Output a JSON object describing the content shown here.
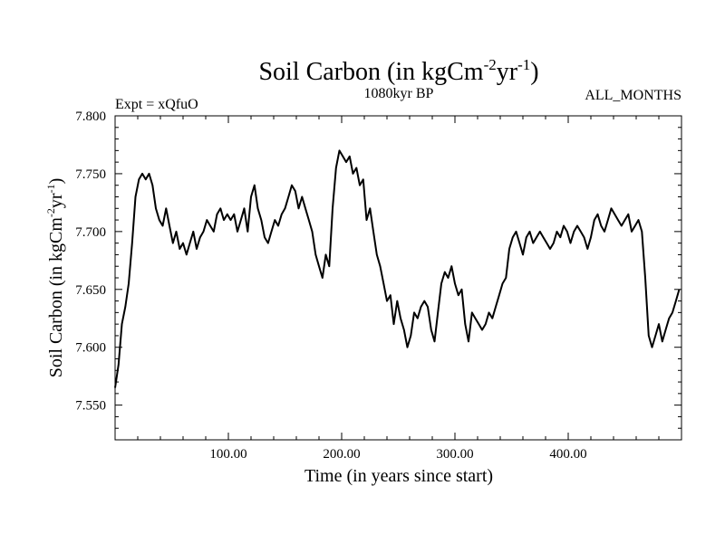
{
  "chart_data": {
    "type": "line",
    "title_main": "Soil Carbon (in kgCm",
    "title_exp1": "-2",
    "title_mid": "yr",
    "title_exp2": "-1",
    "title_end": ")",
    "subtitle_center": "1080kyr BP",
    "subtitle_left": "Expt = xQfuO",
    "subtitle_right": "ALL_MONTHS",
    "xlabel": "Time (in years since start)",
    "ylabel_main": "Soil Carbon (in kgCm",
    "ylabel_exp1": "-2",
    "ylabel_mid": "yr",
    "ylabel_exp2": "-1",
    "ylabel_end": ")",
    "xlim": [
      0,
      500
    ],
    "ylim": [
      7.52,
      7.8
    ],
    "x_ticks": [
      100,
      200,
      300,
      400
    ],
    "x_tick_labels": [
      "100.00",
      "200.00",
      "300.00",
      "400.00"
    ],
    "y_ticks": [
      7.55,
      7.6,
      7.65,
      7.7,
      7.75,
      7.8
    ],
    "y_tick_labels": [
      "7.550",
      "7.600",
      "7.650",
      "7.700",
      "7.750",
      "7.800"
    ],
    "line_color": "#000000",
    "series": [
      {
        "name": "Soil Carbon",
        "x": [
          0,
          3,
          6,
          9,
          12,
          15,
          18,
          21,
          24,
          27,
          30,
          33,
          36,
          39,
          42,
          45,
          48,
          51,
          54,
          57,
          60,
          63,
          66,
          69,
          72,
          75,
          78,
          81,
          84,
          87,
          90,
          93,
          96,
          99,
          102,
          105,
          108,
          111,
          114,
          117,
          120,
          123,
          126,
          129,
          132,
          135,
          138,
          141,
          144,
          147,
          150,
          153,
          156,
          159,
          162,
          165,
          168,
          171,
          174,
          177,
          180,
          183,
          186,
          189,
          192,
          195,
          198,
          201,
          204,
          207,
          210,
          213,
          216,
          219,
          222,
          225,
          228,
          231,
          234,
          237,
          240,
          243,
          246,
          249,
          252,
          255,
          258,
          261,
          264,
          267,
          270,
          273,
          276,
          279,
          282,
          285,
          288,
          291,
          294,
          297,
          300,
          303,
          306,
          309,
          312,
          315,
          318,
          321,
          324,
          327,
          330,
          333,
          336,
          339,
          342,
          345,
          348,
          351,
          354,
          357,
          360,
          363,
          366,
          369,
          372,
          375,
          378,
          381,
          384,
          387,
          390,
          393,
          396,
          399,
          402,
          405,
          408,
          411,
          414,
          417,
          420,
          423,
          426,
          429,
          432,
          435,
          438,
          441,
          444,
          447,
          450,
          453,
          456,
          459,
          462,
          465,
          468,
          471,
          474,
          477,
          480,
          483,
          486,
          489,
          492,
          495,
          498
        ],
        "y": [
          7.565,
          7.585,
          7.62,
          7.635,
          7.655,
          7.69,
          7.73,
          7.745,
          7.75,
          7.745,
          7.75,
          7.74,
          7.72,
          7.71,
          7.705,
          7.72,
          7.705,
          7.69,
          7.7,
          7.685,
          7.69,
          7.68,
          7.69,
          7.7,
          7.685,
          7.695,
          7.7,
          7.71,
          7.705,
          7.7,
          7.715,
          7.72,
          7.71,
          7.715,
          7.71,
          7.715,
          7.7,
          7.71,
          7.72,
          7.7,
          7.73,
          7.74,
          7.72,
          7.71,
          7.695,
          7.69,
          7.7,
          7.71,
          7.705,
          7.715,
          7.72,
          7.73,
          7.74,
          7.735,
          7.72,
          7.73,
          7.72,
          7.71,
          7.7,
          7.68,
          7.67,
          7.66,
          7.68,
          7.67,
          7.72,
          7.755,
          7.77,
          7.765,
          7.76,
          7.765,
          7.75,
          7.755,
          7.74,
          7.745,
          7.71,
          7.72,
          7.7,
          7.68,
          7.67,
          7.655,
          7.64,
          7.645,
          7.62,
          7.64,
          7.625,
          7.615,
          7.6,
          7.61,
          7.63,
          7.625,
          7.635,
          7.64,
          7.635,
          7.615,
          7.605,
          7.63,
          7.655,
          7.665,
          7.66,
          7.67,
          7.655,
          7.645,
          7.65,
          7.62,
          7.605,
          7.63,
          7.625,
          7.62,
          7.615,
          7.62,
          7.63,
          7.625,
          7.635,
          7.645,
          7.655,
          7.66,
          7.685,
          7.695,
          7.7,
          7.69,
          7.68,
          7.695,
          7.7,
          7.69,
          7.695,
          7.7,
          7.695,
          7.69,
          7.685,
          7.69,
          7.7,
          7.695,
          7.705,
          7.7,
          7.69,
          7.7,
          7.705,
          7.7,
          7.695,
          7.685,
          7.695,
          7.71,
          7.715,
          7.705,
          7.7,
          7.71,
          7.72,
          7.715,
          7.71,
          7.705,
          7.71,
          7.715,
          7.7,
          7.705,
          7.71,
          7.7,
          7.66,
          7.61,
          7.6,
          7.61,
          7.62,
          7.605,
          7.615,
          7.625,
          7.63,
          7.64,
          7.65
        ]
      }
    ]
  }
}
